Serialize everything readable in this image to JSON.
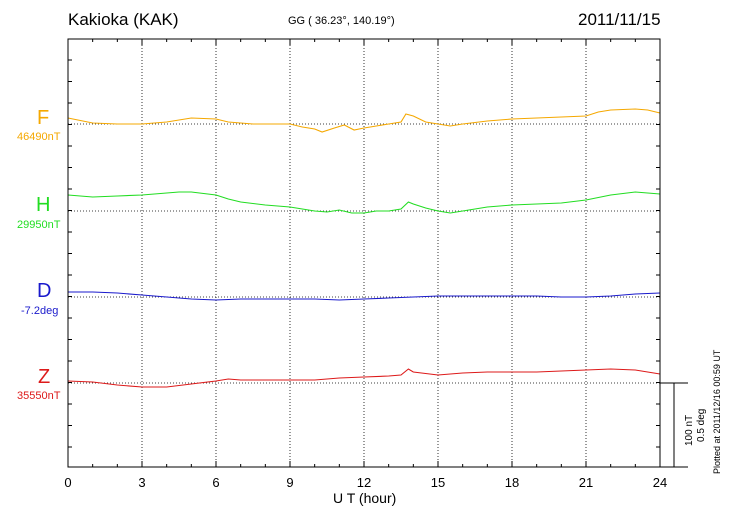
{
  "header": {
    "station": "Kakioka (KAK)",
    "coords": "GG ( 36.23°, 140.19°)",
    "date": "2011/11/15"
  },
  "footer": {
    "plotted": "Plotted at 2011/12/16 00:59 UT",
    "scale_nt": "100 nT",
    "scale_deg": "0.5 deg"
  },
  "chart_data": {
    "type": "line",
    "title": "Kakioka (KAK)",
    "xlabel": "U T (hour)",
    "ylabel": "",
    "xlim": [
      0,
      24
    ],
    "xticks": [
      "0",
      "3",
      "6",
      "9",
      "12",
      "15",
      "18",
      "21",
      "24"
    ],
    "grid": true,
    "series": [
      {
        "name": "F",
        "baseline_label": "46490nT",
        "color": "#f5a800",
        "x": [
          0,
          1,
          2,
          3,
          4,
          5,
          6,
          6.5,
          7,
          7.5,
          8,
          9,
          9.5,
          10,
          10.3,
          10.8,
          11.2,
          11.6,
          12,
          12.5,
          13,
          13.5,
          13.7,
          14,
          14.5,
          15,
          15.5,
          16,
          17,
          18,
          19,
          20,
          21,
          21.5,
          22,
          23,
          23.5,
          24
        ],
        "values": [
          6,
          1,
          0,
          0,
          2,
          6,
          5,
          2,
          1,
          0,
          0,
          0,
          -3,
          -5,
          -8,
          -4,
          -1,
          -6,
          -4,
          -2,
          0,
          2,
          10,
          8,
          2,
          0,
          -2,
          0,
          3,
          5,
          6,
          7,
          8,
          12,
          14,
          15,
          14,
          11
        ]
      },
      {
        "name": "H",
        "baseline_label": "29950nT",
        "color": "#22dd22",
        "x": [
          0,
          1,
          2,
          3,
          4,
          4.5,
          5,
          6,
          6.5,
          7,
          8,
          9,
          10,
          10.5,
          11,
          11.5,
          12,
          12.5,
          13,
          13.5,
          13.8,
          14,
          14.5,
          15,
          15.5,
          16,
          17,
          18,
          19,
          20,
          21,
          22,
          23,
          24
        ],
        "values": [
          16,
          14,
          15,
          16,
          18,
          19,
          19,
          16,
          12,
          9,
          6,
          4,
          0,
          -1,
          1,
          -2,
          -2,
          0,
          0,
          2,
          9,
          7,
          3,
          0,
          -2,
          0,
          4,
          6,
          7,
          8,
          11,
          16,
          19,
          17
        ]
      },
      {
        "name": "D",
        "baseline_label": "-7.2deg",
        "color": "#1a1acc",
        "x": [
          0,
          1,
          2,
          3,
          4,
          5,
          6,
          7,
          8,
          9,
          10,
          11,
          12,
          13,
          14,
          15,
          16,
          17,
          18,
          19,
          20,
          21,
          22,
          23,
          24
        ],
        "values": [
          5,
          5,
          4,
          2,
          0,
          -2,
          -3,
          -2,
          -2,
          -2,
          -2,
          -3,
          -2,
          -1,
          0,
          1,
          1,
          1,
          1,
          1,
          0,
          0,
          1,
          3,
          4
        ]
      },
      {
        "name": "Z",
        "baseline_label": "35550nT",
        "color": "#dd1a1a",
        "x": [
          0,
          1,
          2,
          3,
          4,
          5,
          6,
          6.5,
          7,
          8,
          9,
          10,
          11,
          12,
          13,
          13.5,
          13.8,
          14,
          15,
          16,
          17,
          18,
          19,
          20,
          21,
          22,
          23,
          24
        ],
        "values": [
          2,
          1,
          -2,
          -4,
          -4,
          -1,
          2,
          4,
          3,
          3,
          3,
          3,
          5,
          6,
          7,
          8,
          14,
          11,
          8,
          10,
          11,
          11,
          11,
          12,
          13,
          14,
          13,
          9
        ]
      }
    ]
  }
}
